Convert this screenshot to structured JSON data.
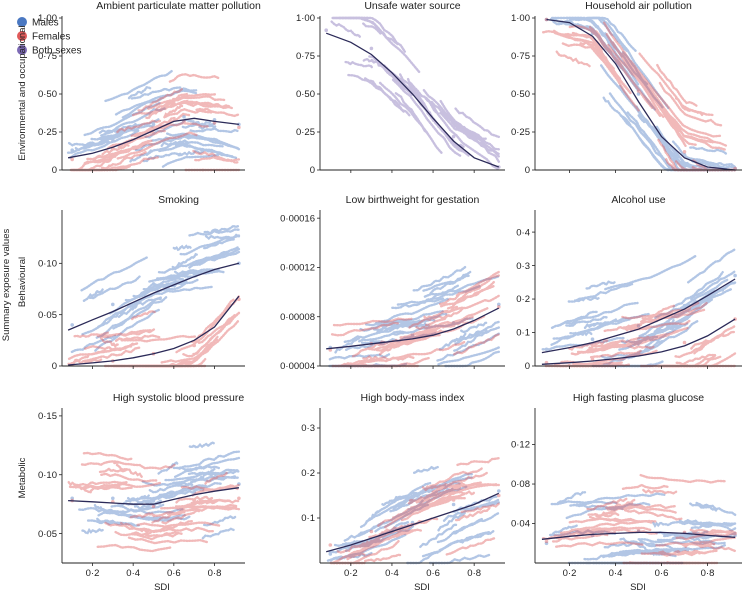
{
  "figure": {
    "outer_ylabel": "Summary exposure values",
    "row_labels": [
      "Environmental and occupational",
      "Behavioural",
      "Metabolic"
    ],
    "xlabel": "SDI",
    "x_ticks": [
      0.2,
      0.4,
      0.6,
      0.8
    ],
    "legend": [
      {
        "label": "Males",
        "color": "#4a78c2"
      },
      {
        "label": "Females",
        "color": "#e05a5a"
      },
      {
        "label": "Both sexes",
        "color": "#7d6ab5"
      }
    ]
  },
  "colors": {
    "males": "#4a78c2",
    "females": "#e05a5a",
    "both": "#7d6ab5",
    "fit": "#2b2a58",
    "axis": "#222222"
  },
  "chart_data": [
    {
      "type": "scatter",
      "title": "Ambient particulate matter pollution",
      "xlabel": "SDI",
      "ylabel": "Environmental and occupational",
      "xlim": [
        0.05,
        0.95
      ],
      "ylim": [
        0,
        1.0
      ],
      "yticks": [
        0,
        0.25,
        0.5,
        0.75,
        1.0
      ],
      "ytick_labels": [
        "0",
        "0·25",
        "0·50",
        "0·75",
        "1·00"
      ],
      "xticks": [
        0.2,
        0.4,
        0.6,
        0.8
      ],
      "xtick_labels": [
        "",
        "",
        "",
        ""
      ],
      "series": [
        {
          "name": "Males",
          "x": [
            0.1,
            0.3,
            0.5,
            0.65,
            0.8,
            0.92
          ],
          "values": [
            0.13,
            0.2,
            0.3,
            0.35,
            0.33,
            0.3
          ]
        },
        {
          "name": "Females",
          "x": [
            0.1,
            0.3,
            0.5,
            0.65,
            0.8,
            0.92
          ],
          "values": [
            0.07,
            0.14,
            0.24,
            0.32,
            0.31,
            0.28
          ]
        }
      ],
      "fit": {
        "x": [
          0.08,
          0.2,
          0.3,
          0.4,
          0.5,
          0.6,
          0.7,
          0.8,
          0.92
        ],
        "values": [
          0.08,
          0.11,
          0.15,
          0.2,
          0.26,
          0.32,
          0.34,
          0.32,
          0.3
        ]
      }
    },
    {
      "type": "scatter",
      "title": "Unsafe water source",
      "xlabel": "SDI",
      "ylabel": "",
      "xlim": [
        0.05,
        0.95
      ],
      "ylim": [
        0,
        1.0
      ],
      "yticks": [
        0,
        0.25,
        0.5,
        0.75,
        1.0
      ],
      "ytick_labels": [
        "0",
        "0·25",
        "0·50",
        "0·75",
        "1·00"
      ],
      "xticks": [
        0.2,
        0.4,
        0.6,
        0.8
      ],
      "xtick_labels": [
        "",
        "",
        "",
        ""
      ],
      "series": [
        {
          "name": "Both sexes",
          "x": [
            0.08,
            0.3,
            0.5,
            0.7,
            0.92
          ],
          "values": [
            0.92,
            0.8,
            0.55,
            0.22,
            0.02
          ]
        }
      ],
      "fit": {
        "x": [
          0.08,
          0.2,
          0.3,
          0.4,
          0.5,
          0.6,
          0.7,
          0.8,
          0.92
        ],
        "values": [
          0.9,
          0.84,
          0.76,
          0.64,
          0.5,
          0.34,
          0.19,
          0.08,
          0.02
        ]
      }
    },
    {
      "type": "scatter",
      "title": "Household air pollution",
      "xlabel": "SDI",
      "ylabel": "",
      "xlim": [
        0.05,
        0.95
      ],
      "ylim": [
        0,
        1.0
      ],
      "yticks": [
        0,
        0.25,
        0.5,
        0.75,
        1.0
      ],
      "ytick_labels": [
        "0",
        "0·25",
        "0·50",
        "0·75",
        "1·00"
      ],
      "xticks": [
        0.2,
        0.4,
        0.6,
        0.8
      ],
      "xtick_labels": [
        "",
        "",
        "",
        ""
      ],
      "series": [
        {
          "name": "Males",
          "x": [
            0.1,
            0.3,
            0.5,
            0.7,
            0.92
          ],
          "values": [
            0.99,
            0.9,
            0.5,
            0.1,
            0.01
          ]
        },
        {
          "name": "Females",
          "x": [
            0.1,
            0.3,
            0.5,
            0.7,
            0.92
          ],
          "values": [
            0.99,
            0.92,
            0.52,
            0.12,
            0.01
          ]
        }
      ],
      "fit": {
        "x": [
          0.1,
          0.2,
          0.3,
          0.4,
          0.5,
          0.6,
          0.7,
          0.8,
          0.92
        ],
        "values": [
          0.99,
          0.97,
          0.88,
          0.7,
          0.45,
          0.22,
          0.08,
          0.02,
          0.0
        ]
      }
    },
    {
      "type": "scatter",
      "title": "Smoking",
      "xlabel": "SDI",
      "ylabel": "Behavioural",
      "xlim": [
        0.05,
        0.95
      ],
      "ylim": [
        0,
        0.15
      ],
      "yticks": [
        0,
        0.05,
        0.1
      ],
      "ytick_labels": [
        "0",
        "0·05",
        "0·10"
      ],
      "xticks": [
        0.2,
        0.4,
        0.6,
        0.8
      ],
      "xtick_labels": [
        "",
        "",
        "",
        ""
      ],
      "series": [
        {
          "name": "Males",
          "x": [
            0.1,
            0.3,
            0.5,
            0.7,
            0.92
          ],
          "values": [
            0.04,
            0.06,
            0.08,
            0.09,
            0.1
          ]
        },
        {
          "name": "Females",
          "x": [
            0.1,
            0.3,
            0.5,
            0.7,
            0.92
          ],
          "values": [
            0.002,
            0.005,
            0.012,
            0.02,
            0.065
          ]
        }
      ],
      "fit": [
        {
          "x": [
            0.08,
            0.2,
            0.3,
            0.4,
            0.5,
            0.6,
            0.7,
            0.8,
            0.92
          ],
          "values": [
            0.035,
            0.045,
            0.053,
            0.062,
            0.071,
            0.079,
            0.087,
            0.094,
            0.1
          ]
        },
        {
          "x": [
            0.08,
            0.2,
            0.3,
            0.4,
            0.5,
            0.6,
            0.7,
            0.8,
            0.92
          ],
          "values": [
            0.001,
            0.003,
            0.005,
            0.008,
            0.012,
            0.017,
            0.025,
            0.038,
            0.068
          ]
        }
      ]
    },
    {
      "type": "scatter",
      "title": "Low birthweight for gestation",
      "xlabel": "SDI",
      "ylabel": "",
      "xlim": [
        0.05,
        0.95
      ],
      "ylim": [
        4e-05,
        0.000165
      ],
      "yticks": [
        4e-05,
        8e-05,
        0.00012,
        0.00016
      ],
      "ytick_labels": [
        "0·00004",
        "0·00008",
        "0·00012",
        "0·00016"
      ],
      "xticks": [
        0.2,
        0.4,
        0.6,
        0.8
      ],
      "xtick_labels": [
        "",
        "",
        "",
        ""
      ],
      "series": [
        {
          "name": "Males",
          "x": [
            0.1,
            0.3,
            0.5,
            0.7,
            0.92
          ],
          "values": [
            5.5e-05,
            6e-05,
            6.5e-05,
            7.5e-05,
            9e-05
          ]
        },
        {
          "name": "Females",
          "x": [
            0.1,
            0.3,
            0.5,
            0.7,
            0.92
          ],
          "values": [
            5.3e-05,
            5.8e-05,
            6.4e-05,
            7.3e-05,
            8.8e-05
          ]
        }
      ],
      "fit": {
        "x": [
          0.08,
          0.2,
          0.3,
          0.4,
          0.5,
          0.6,
          0.7,
          0.8,
          0.92
        ],
        "values": [
          5.4e-05,
          5.6e-05,
          5.8e-05,
          6e-05,
          6.2e-05,
          6.5e-05,
          7e-05,
          7.7e-05,
          8.7e-05
        ]
      }
    },
    {
      "type": "scatter",
      "title": "Alcohol use",
      "xlabel": "SDI",
      "ylabel": "",
      "xlim": [
        0.05,
        0.95
      ],
      "ylim": [
        0,
        0.46
      ],
      "yticks": [
        0,
        0.1,
        0.2,
        0.3,
        0.4
      ],
      "ytick_labels": [
        "0",
        "0·1",
        "0·2",
        "0·3",
        "0·4"
      ],
      "xticks": [
        0.2,
        0.4,
        0.6,
        0.8
      ],
      "xtick_labels": [
        "",
        "",
        "",
        ""
      ],
      "series": [
        {
          "name": "Males",
          "x": [
            0.1,
            0.3,
            0.5,
            0.7,
            0.92
          ],
          "values": [
            0.05,
            0.08,
            0.12,
            0.18,
            0.27
          ]
        },
        {
          "name": "Females",
          "x": [
            0.1,
            0.3,
            0.5,
            0.7,
            0.92
          ],
          "values": [
            0.01,
            0.02,
            0.04,
            0.07,
            0.14
          ]
        }
      ],
      "fit": [
        {
          "x": [
            0.08,
            0.2,
            0.3,
            0.4,
            0.5,
            0.6,
            0.7,
            0.8,
            0.92
          ],
          "values": [
            0.04,
            0.055,
            0.07,
            0.09,
            0.11,
            0.14,
            0.17,
            0.21,
            0.26
          ]
        },
        {
          "x": [
            0.08,
            0.2,
            0.3,
            0.4,
            0.5,
            0.6,
            0.7,
            0.8,
            0.92
          ],
          "values": [
            0.005,
            0.01,
            0.015,
            0.022,
            0.03,
            0.042,
            0.06,
            0.09,
            0.14
          ]
        }
      ]
    },
    {
      "type": "scatter",
      "title": "High systolic blood pressure",
      "xlabel": "SDI",
      "ylabel": "Metabolic",
      "xlim": [
        0.05,
        0.95
      ],
      "ylim": [
        0.025,
        0.155
      ],
      "yticks": [
        0.05,
        0.1,
        0.15
      ],
      "ytick_labels": [
        "0·05",
        "0·10",
        "0·15"
      ],
      "xticks": [
        0.2,
        0.4,
        0.6,
        0.8
      ],
      "xtick_labels": [
        "0·2",
        "0·4",
        "0·6",
        "0·8"
      ],
      "series": [
        {
          "name": "Males",
          "x": [
            0.1,
            0.3,
            0.5,
            0.7,
            0.92
          ],
          "values": [
            0.08,
            0.08,
            0.078,
            0.085,
            0.092
          ]
        },
        {
          "name": "Females",
          "x": [
            0.1,
            0.3,
            0.5,
            0.7,
            0.92
          ],
          "values": [
            0.078,
            0.077,
            0.073,
            0.078,
            0.08
          ]
        }
      ],
      "fit": {
        "x": [
          0.08,
          0.2,
          0.3,
          0.4,
          0.5,
          0.6,
          0.7,
          0.8,
          0.92
        ],
        "values": [
          0.078,
          0.077,
          0.076,
          0.075,
          0.075,
          0.079,
          0.083,
          0.086,
          0.089
        ]
      }
    },
    {
      "type": "scatter",
      "title": "High body-mass index",
      "xlabel": "SDI",
      "ylabel": "",
      "xlim": [
        0.05,
        0.95
      ],
      "ylim": [
        0,
        0.34
      ],
      "yticks": [
        0.1,
        0.2,
        0.3
      ],
      "ytick_labels": [
        "0·1",
        "0·2",
        "0·3"
      ],
      "xticks": [
        0.2,
        0.4,
        0.6,
        0.8
      ],
      "xtick_labels": [
        "0·2",
        "0·4",
        "0·6",
        "0·8"
      ],
      "series": [
        {
          "name": "Males",
          "x": [
            0.1,
            0.3,
            0.5,
            0.7,
            0.92
          ],
          "values": [
            0.02,
            0.05,
            0.09,
            0.13,
            0.16
          ]
        },
        {
          "name": "Females",
          "x": [
            0.1,
            0.3,
            0.5,
            0.7,
            0.92
          ],
          "values": [
            0.04,
            0.07,
            0.11,
            0.14,
            0.15
          ]
        }
      ],
      "fit": {
        "x": [
          0.08,
          0.2,
          0.3,
          0.4,
          0.5,
          0.6,
          0.7,
          0.8,
          0.92
        ],
        "values": [
          0.025,
          0.04,
          0.055,
          0.07,
          0.085,
          0.1,
          0.115,
          0.13,
          0.155
        ]
      }
    },
    {
      "type": "scatter",
      "title": "High fasting plasma glucose",
      "xlabel": "SDI",
      "ylabel": "",
      "xlim": [
        0.05,
        0.95
      ],
      "ylim": [
        0,
        0.155
      ],
      "yticks": [
        0.04,
        0.08,
        0.12
      ],
      "ytick_labels": [
        "0·04",
        "0·08",
        "0·12"
      ],
      "xticks": [
        0.2,
        0.4,
        0.6,
        0.8
      ],
      "xtick_labels": [
        "0·2",
        "0·4",
        "0·6",
        "0·8"
      ],
      "series": [
        {
          "name": "Males",
          "x": [
            0.1,
            0.3,
            0.5,
            0.7,
            0.92
          ],
          "values": [
            0.02,
            0.028,
            0.032,
            0.03,
            0.028
          ]
        },
        {
          "name": "Females",
          "x": [
            0.1,
            0.3,
            0.5,
            0.7,
            0.92
          ],
          "values": [
            0.022,
            0.03,
            0.034,
            0.031,
            0.03
          ]
        }
      ],
      "fit": {
        "x": [
          0.08,
          0.2,
          0.3,
          0.4,
          0.5,
          0.6,
          0.7,
          0.8,
          0.92
        ],
        "values": [
          0.024,
          0.027,
          0.029,
          0.03,
          0.031,
          0.031,
          0.03,
          0.028,
          0.026
        ]
      }
    }
  ]
}
